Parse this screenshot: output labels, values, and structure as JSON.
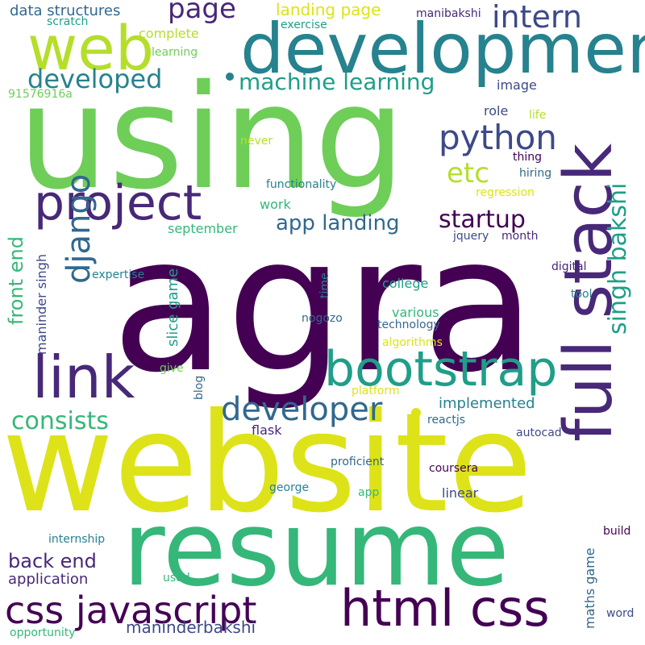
{
  "palette": {
    "purple": "#440154",
    "indigo": "#482878",
    "blue": "#3e4989",
    "steel": "#31688e",
    "teal": "#26828e",
    "sea": "#1f9e89",
    "green": "#35b779",
    "lime": "#6ece58",
    "yellowgreen": "#b5de2b",
    "yellow": "#dde318"
  },
  "words": {
    "agra": "agra",
    "using": "using",
    "website": "website",
    "resume": "resume",
    "development": "development",
    "web": "web",
    "full_stack": "full stack",
    "project": "project",
    "link": "link",
    "bootstrap": "bootstrap",
    "html_css": "html css",
    "css_javascript": "css javascript",
    "python": "python",
    "developer": "developer",
    "django": "django",
    "intern": "intern",
    "page": "page",
    "developed": "developed",
    "machine_learning": "machine learning",
    "singh_bakshi": "singh bakshi",
    "etc": "etc",
    "startup": "startup",
    "app_landing": "app landing",
    "consists": "consists",
    "front_end": "front end",
    "back_end": "back end",
    "application": "application",
    "maninderbakshi": "maninderbakshi",
    "landing_page": "landing page",
    "data_structures": "data structures",
    "complete": "complete",
    "manibakshi": "manibakshi",
    "scratch": "scratch",
    "exercise": "exercise",
    "learning": "learning",
    "id_number": "91576916a",
    "image": "image",
    "role": "role",
    "life": "life",
    "never": "never",
    "thing": "thing",
    "hiring": "hiring",
    "functionality": "functionality",
    "regression": "regression",
    "work": "work",
    "september": "september",
    "jquery": "jquery",
    "month": "month",
    "maninder_singh": "maninder singh",
    "slice_game": "slice game",
    "time": "time",
    "expertise": "expertise",
    "digital": "digital",
    "college": "college",
    "tool": "tool",
    "various": "various",
    "nogozo": "nogozo",
    "technology": "technology",
    "algorithms": "algorithms",
    "give": "give",
    "blog": "blog",
    "platform": "platform",
    "implemented": "implemented",
    "flask": "flask",
    "reactjs": "reactjs",
    "autocad": "autocad",
    "proficient": "proficient",
    "coursera": "coursera",
    "george": "george",
    "app": "app",
    "linear": "linear",
    "internship": "internship",
    "maths_game": "maths game",
    "build": "build",
    "used": "used",
    "word": "word",
    "opportunity": "opportunity"
  }
}
